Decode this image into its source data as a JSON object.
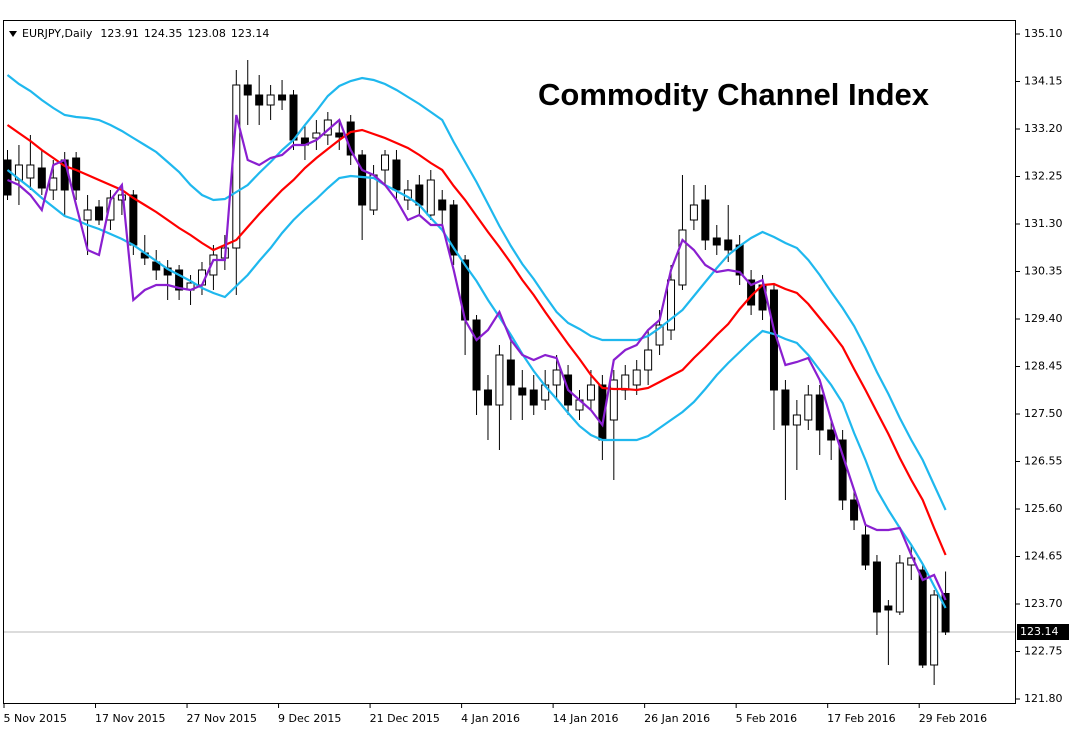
{
  "chart_data": {
    "type": "candlestick",
    "title": "EURJPY,Daily",
    "annotation": "Commodity Channel Index",
    "categories": [
      "5 Nov 2015",
      null,
      null,
      null,
      null,
      null,
      null,
      null,
      "17 Nov 2015",
      null,
      null,
      null,
      null,
      null,
      null,
      null,
      "27 Nov 2015",
      null,
      null,
      null,
      null,
      null,
      null,
      null,
      "9 Dec 2015",
      null,
      null,
      null,
      null,
      null,
      null,
      null,
      "21 Dec 2015",
      null,
      null,
      null,
      null,
      null,
      null,
      null,
      "4 Jan 2016",
      null,
      null,
      null,
      null,
      null,
      null,
      null,
      "14 Jan 2016",
      null,
      null,
      null,
      null,
      null,
      null,
      null,
      "26 Jan 2016",
      null,
      null,
      null,
      null,
      null,
      null,
      null,
      "5 Feb 2016",
      null,
      null,
      null,
      null,
      null,
      null,
      null,
      "17 Feb 2016",
      null,
      null,
      null,
      null,
      null,
      null,
      null,
      "29 Feb 2016",
      null,
      null
    ],
    "open": [
      132.58,
      132.18,
      132.22,
      132.42,
      131.98,
      132.58,
      132.62,
      131.38,
      131.64,
      131.38,
      131.78,
      131.88,
      130.72,
      130.54,
      130.42,
      130.38,
      129.98,
      130.08,
      130.28,
      130.62,
      130.82,
      134.08,
      133.88,
      133.68,
      133.88,
      133.88,
      133.02,
      133.02,
      133.08,
      133.12,
      133.34,
      132.68,
      131.58,
      132.38,
      132.58,
      131.78,
      132.08,
      131.48,
      131.78,
      131.68,
      130.58,
      129.38,
      127.98,
      127.68,
      128.58,
      128.02,
      127.98,
      127.78,
      128.08,
      128.28,
      127.58,
      127.78,
      128.08,
      127.38,
      127.98,
      128.08,
      128.38,
      128.88,
      129.18,
      130.08,
      131.38,
      131.78,
      131.02,
      130.98,
      130.88,
      130.18,
      130.08,
      129.98,
      127.98,
      127.28,
      127.38,
      127.88,
      127.18,
      126.98,
      125.78,
      125.08,
      124.54,
      123.66,
      123.54,
      124.48,
      124.38,
      122.48,
      123.91
    ],
    "high": [
      132.78,
      132.88,
      133.08,
      132.78,
      132.58,
      132.74,
      132.74,
      131.88,
      131.78,
      131.98,
      132.08,
      131.98,
      131.08,
      130.78,
      130.58,
      130.48,
      130.28,
      130.54,
      130.88,
      131.08,
      134.38,
      134.58,
      134.28,
      134.08,
      134.18,
      133.98,
      133.28,
      133.38,
      133.54,
      133.38,
      133.48,
      132.78,
      132.48,
      132.78,
      132.78,
      132.18,
      132.28,
      132.38,
      131.98,
      131.78,
      130.68,
      129.48,
      128.28,
      128.88,
      129.08,
      128.38,
      128.28,
      128.38,
      128.68,
      128.48,
      127.98,
      128.38,
      128.28,
      128.38,
      128.48,
      128.58,
      129.18,
      129.58,
      130.48,
      132.28,
      132.08,
      132.08,
      131.28,
      131.68,
      131.08,
      130.38,
      130.28,
      130.08,
      128.18,
      127.78,
      128.08,
      128.08,
      127.38,
      127.18,
      125.98,
      125.28,
      124.68,
      123.78,
      124.68,
      124.88,
      124.48,
      123.98,
      124.35
    ],
    "low": [
      131.78,
      131.68,
      131.98,
      131.88,
      131.78,
      131.48,
      131.78,
      130.68,
      131.28,
      131.18,
      131.48,
      130.68,
      130.48,
      130.18,
      129.78,
      129.78,
      129.68,
      129.88,
      129.98,
      130.38,
      129.88,
      133.28,
      133.28,
      133.38,
      133.58,
      132.78,
      132.58,
      132.78,
      132.88,
      132.78,
      132.48,
      130.98,
      131.48,
      132.08,
      131.78,
      131.58,
      131.48,
      131.38,
      131.28,
      130.48,
      128.68,
      127.48,
      126.98,
      126.78,
      127.38,
      127.38,
      127.48,
      127.58,
      127.78,
      127.48,
      127.38,
      127.58,
      126.58,
      126.18,
      127.78,
      127.88,
      128.08,
      128.68,
      128.98,
      129.98,
      131.18,
      130.78,
      130.68,
      130.54,
      130.08,
      129.48,
      129.38,
      127.18,
      125.78,
      126.38,
      127.18,
      126.68,
      126.58,
      125.58,
      125.18,
      124.38,
      123.08,
      122.48,
      123.48,
      124.18,
      122.42,
      122.08,
      123.08
    ],
    "close": [
      131.88,
      132.48,
      132.48,
      132.02,
      132.22,
      131.98,
      131.98,
      131.58,
      131.38,
      131.82,
      131.88,
      130.88,
      130.62,
      130.38,
      130.28,
      129.98,
      130.12,
      130.38,
      130.68,
      130.82,
      134.08,
      133.88,
      133.68,
      133.88,
      133.78,
      132.98,
      132.88,
      133.12,
      133.38,
      133.04,
      132.68,
      131.68,
      132.28,
      132.68,
      131.98,
      131.98,
      131.68,
      132.18,
      131.58,
      130.68,
      129.38,
      127.98,
      127.68,
      128.68,
      128.08,
      127.88,
      127.68,
      128.08,
      128.38,
      127.68,
      127.78,
      128.08,
      126.98,
      128.18,
      128.28,
      128.38,
      128.78,
      129.28,
      130.18,
      131.18,
      131.68,
      130.98,
      130.88,
      130.78,
      130.28,
      129.68,
      129.58,
      127.98,
      127.28,
      127.48,
      127.88,
      127.18,
      126.98,
      125.78,
      125.38,
      124.48,
      123.54,
      123.58,
      124.52,
      124.62,
      122.48,
      123.88,
      123.14
    ],
    "up_color": "#ffffff",
    "down_color": "#000000",
    "series": [
      {
        "color": "#1fb8ee",
        "values": [
          134.28,
          134.1,
          133.96,
          133.78,
          133.62,
          133.48,
          133.44,
          133.42,
          133.38,
          133.28,
          133.16,
          133.02,
          132.88,
          132.74,
          132.54,
          132.34,
          132.08,
          131.88,
          131.78,
          131.8,
          131.94,
          132.08,
          132.32,
          132.54,
          132.78,
          132.98,
          133.28,
          133.56,
          133.86,
          134.06,
          134.16,
          134.22,
          134.18,
          134.1,
          133.98,
          133.84,
          133.7,
          133.54,
          133.38,
          132.94,
          132.54,
          132.14,
          131.7,
          131.26,
          130.86,
          130.5,
          130.2,
          129.86,
          129.54,
          129.32,
          129.2,
          129.06,
          128.98,
          128.98,
          128.98,
          128.98,
          129.06,
          129.22,
          129.4,
          129.58,
          129.86,
          130.14,
          130.42,
          130.68,
          130.86,
          131.02,
          131.14,
          131.04,
          130.92,
          130.82,
          130.58,
          130.28,
          129.94,
          129.62,
          129.26,
          128.82,
          128.34,
          127.9,
          127.42,
          126.98,
          126.58,
          126.08,
          125.58
        ]
      },
      {
        "color": "#ff0000",
        "values": [
          133.28,
          133.12,
          132.96,
          132.78,
          132.62,
          132.46,
          132.38,
          132.28,
          132.18,
          132.08,
          131.98,
          131.82,
          131.68,
          131.54,
          131.38,
          131.22,
          131.08,
          130.92,
          130.78,
          130.88,
          130.98,
          131.24,
          131.5,
          131.74,
          131.98,
          132.18,
          132.42,
          132.62,
          132.8,
          132.98,
          133.14,
          133.18,
          133.1,
          133.02,
          132.92,
          132.82,
          132.68,
          132.52,
          132.38,
          132.06,
          131.78,
          131.46,
          131.14,
          130.84,
          130.52,
          130.18,
          129.88,
          129.54,
          129.22,
          128.9,
          128.6,
          128.28,
          128.02,
          128.0,
          128.0,
          127.98,
          128.02,
          128.14,
          128.26,
          128.38,
          128.62,
          128.84,
          129.08,
          129.3,
          129.6,
          129.86,
          130.08,
          130.1,
          130.0,
          129.92,
          129.7,
          129.42,
          129.14,
          128.84,
          128.4,
          127.98,
          127.54,
          127.1,
          126.62,
          126.18,
          125.78,
          125.22,
          124.68
        ]
      },
      {
        "color": "#1fb8ee",
        "values": [
          132.38,
          132.2,
          132.02,
          131.82,
          131.64,
          131.46,
          131.38,
          131.28,
          131.2,
          131.1,
          131.0,
          130.88,
          130.72,
          130.56,
          130.4,
          130.28,
          130.16,
          130.02,
          129.92,
          129.84,
          130.06,
          130.28,
          130.56,
          130.82,
          131.12,
          131.38,
          131.6,
          131.8,
          132.02,
          132.22,
          132.26,
          132.24,
          132.22,
          132.08,
          131.96,
          131.84,
          131.68,
          131.42,
          131.18,
          130.82,
          130.48,
          130.16,
          129.78,
          129.44,
          129.08,
          128.7,
          128.36,
          128.06,
          127.8,
          127.52,
          127.26,
          127.08,
          126.98,
          126.98,
          126.98,
          126.98,
          127.06,
          127.22,
          127.38,
          127.54,
          127.74,
          128.0,
          128.28,
          128.52,
          128.74,
          128.96,
          129.16,
          129.1,
          129.0,
          128.92,
          128.68,
          128.38,
          128.08,
          127.72,
          127.12,
          126.58,
          125.98,
          125.58,
          125.22,
          124.88,
          124.5,
          124.06,
          123.62
        ]
      },
      {
        "color": "#8a1fd0",
        "values": [
          132.18,
          132.08,
          131.88,
          131.58,
          132.48,
          132.58,
          131.68,
          130.78,
          130.68,
          131.78,
          132.08,
          129.78,
          129.98,
          130.08,
          130.08,
          130.02,
          129.98,
          130.08,
          130.58,
          130.58,
          133.48,
          132.58,
          132.48,
          132.62,
          132.68,
          132.88,
          132.88,
          132.98,
          133.18,
          133.38,
          132.78,
          132.38,
          132.28,
          132.08,
          131.78,
          131.38,
          131.48,
          131.28,
          131.28,
          130.38,
          129.38,
          128.98,
          129.18,
          129.54,
          128.98,
          128.68,
          128.58,
          128.68,
          128.62,
          127.98,
          127.78,
          127.58,
          127.28,
          128.58,
          128.78,
          128.88,
          129.18,
          129.38,
          130.38,
          130.98,
          130.78,
          130.48,
          130.34,
          130.38,
          130.34,
          130.08,
          130.18,
          129.18,
          128.48,
          128.54,
          128.62,
          128.18,
          127.38,
          126.68,
          125.98,
          125.28,
          125.18,
          125.18,
          125.22,
          124.68,
          124.18,
          124.28,
          123.78
        ]
      }
    ],
    "ylim": [
      121.72,
      135.38
    ],
    "yticks": [
      {
        "value": 135.1,
        "label": "135.10"
      },
      134.15,
      {
        "value": 133.2,
        "label": "133.20"
      },
      132.25,
      {
        "value": 131.3,
        "label": "131.30"
      },
      130.35,
      {
        "value": 129.4,
        "label": "129.40"
      },
      128.45,
      {
        "value": 127.5,
        "label": "127.50"
      },
      126.55,
      {
        "value": 125.6,
        "label": "125.60"
      },
      124.65,
      {
        "value": 123.7,
        "label": "123.70"
      },
      122.75,
      {
        "value": 121.8,
        "label": "121.80"
      }
    ],
    "grid": false
  }
}
